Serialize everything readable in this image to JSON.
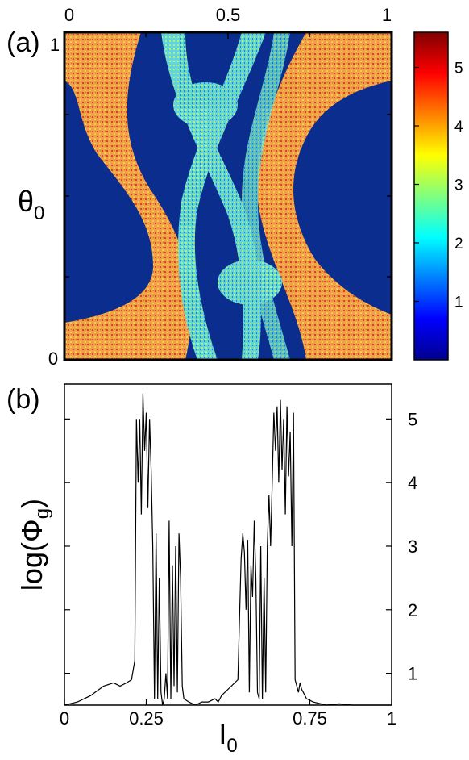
{
  "chart_data": [
    {
      "type": "heatmap",
      "panel_label": "(a)",
      "ylabel": "θ",
      "ylabel_sub": "0",
      "x_ticks": [
        "0",
        "0.5",
        "1"
      ],
      "y_ticks": [
        "0",
        "1"
      ],
      "xlim": [
        0,
        1
      ],
      "ylim": [
        0,
        1
      ],
      "colorbar": {
        "ticks": [
          "1",
          "2",
          "3",
          "4",
          "5"
        ],
        "range": [
          0,
          5.6
        ],
        "colormap": "jet"
      },
      "colors": {
        "background": "#0a2d8e",
        "low": "#1f63e6",
        "mid": "#6fe3cf",
        "high": "#f0a048",
        "peak": "#d8442a"
      }
    },
    {
      "type": "line",
      "panel_label": "(b)",
      "xlabel": "I",
      "xlabel_sub": "0",
      "ylabel": "log(Φ",
      "ylabel_sub": "g",
      "ylabel_end": ")",
      "x_ticks": [
        "0",
        "0.25",
        "0.75",
        "1"
      ],
      "x_tick_values": [
        0,
        0.25,
        0.75,
        1
      ],
      "y_ticks": [
        "1",
        "2",
        "3",
        "4",
        "5"
      ],
      "y_tick_values": [
        1,
        2,
        3,
        4,
        5
      ],
      "xlim": [
        0,
        1
      ],
      "ylim": [
        0.5,
        5.55
      ],
      "series": [
        {
          "x": [
            0,
            0.04,
            0.08,
            0.12,
            0.15,
            0.17,
            0.19,
            0.205,
            0.215,
            0.22,
            0.225,
            0.23,
            0.235,
            0.24,
            0.245,
            0.25,
            0.255,
            0.26,
            0.265,
            0.27,
            0.275,
            0.28,
            0.285,
            0.29,
            0.295,
            0.3,
            0.305,
            0.31,
            0.315,
            0.32,
            0.325,
            0.33,
            0.335,
            0.34,
            0.345,
            0.35,
            0.355,
            0.36,
            0.365,
            0.38,
            0.4,
            0.42,
            0.44,
            0.46,
            0.47,
            0.48,
            0.53,
            0.54,
            0.545,
            0.55,
            0.555,
            0.56,
            0.565,
            0.57,
            0.575,
            0.58,
            0.585,
            0.59,
            0.595,
            0.6,
            0.605,
            0.61,
            0.615,
            0.62,
            0.625,
            0.63,
            0.635,
            0.64,
            0.645,
            0.65,
            0.655,
            0.66,
            0.665,
            0.67,
            0.675,
            0.68,
            0.685,
            0.69,
            0.695,
            0.7,
            0.705,
            0.71,
            0.715,
            0.72,
            0.725,
            0.73,
            0.74,
            0.76,
            0.8,
            0.84,
            0.88,
            0.92,
            0.96,
            1.0
          ],
          "y": [
            0.5,
            0.55,
            0.65,
            0.8,
            0.85,
            0.8,
            0.85,
            0.9,
            1.2,
            5.0,
            4.0,
            5.0,
            3.5,
            5.4,
            4.5,
            5.1,
            3.6,
            5.0,
            4.2,
            3.0,
            0.6,
            3.2,
            0.6,
            2.5,
            0.7,
            0.5,
            0.6,
            1.0,
            0.6,
            3.4,
            0.6,
            2.7,
            0.8,
            3.0,
            0.7,
            3.2,
            2.5,
            0.8,
            0.6,
            0.55,
            0.5,
            0.55,
            0.55,
            0.6,
            0.55,
            0.65,
            0.9,
            2.8,
            3.2,
            2.9,
            2.0,
            3.1,
            0.7,
            2.7,
            2.2,
            3.4,
            2.5,
            0.7,
            0.6,
            3.0,
            0.6,
            2.5,
            0.7,
            3.0,
            3.8,
            3.0,
            4.0,
            5.1,
            4.5,
            5.2,
            4.0,
            5.3,
            4.2,
            5.0,
            3.5,
            5.2,
            4.1,
            4.8,
            3.0,
            5.1,
            0.9,
            0.8,
            0.7,
            0.85,
            0.75,
            0.7,
            0.6,
            0.55,
            0.5,
            0.52,
            0.5,
            0.5,
            0.5,
            0.5
          ]
        }
      ],
      "colors": {
        "line": "#000000"
      }
    }
  ]
}
